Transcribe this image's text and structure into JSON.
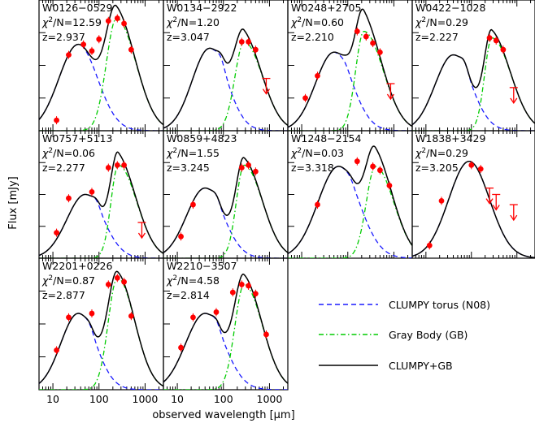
{
  "chart_data": {
    "type": "scatter",
    "xlabel_prefix": "observed wavelength [",
    "xlabel_unit": "μm",
    "xlabel_suffix": "]",
    "ylabel": "Flux [mJy]",
    "x_scale": "log",
    "xlim": [
      5,
      2500
    ],
    "x_tick_labels": [
      "10",
      "100",
      "1000"
    ],
    "legend": [
      {
        "name": "CLUMPY torus (N08)",
        "color": "#1a1aff",
        "style": "dashed"
      },
      {
        "name": "Gray Body (GB)",
        "color": "#00cc00",
        "style": "dashdot"
      },
      {
        "name": "CLUMPY+GB",
        "color": "#000000",
        "style": "solid"
      }
    ],
    "point_color": "#ff0000",
    "panels": [
      {
        "name": "W0126−0529",
        "chi2": "12.59",
        "z": "2.937",
        "points": [
          [
            12,
            0.08
          ],
          [
            22,
            0.58
          ],
          [
            46,
            0.66
          ],
          [
            70,
            0.61
          ],
          [
            100,
            0.7
          ],
          [
            160,
            0.84
          ],
          [
            250,
            0.86
          ],
          [
            350,
            0.82
          ],
          [
            500,
            0.62
          ]
        ],
        "limits": []
      },
      {
        "name": "W0134−2922",
        "chi2": "1.20",
        "z": "3.047",
        "points": [
          [
            250,
            0.68
          ],
          [
            350,
            0.68
          ],
          [
            500,
            0.62
          ]
        ],
        "limits": [
          [
            850,
            0.4
          ]
        ]
      },
      {
        "name": "W0248+2705",
        "chi2": "0.60",
        "z": "2.210",
        "points": [
          [
            12,
            0.25
          ],
          [
            22,
            0.42
          ],
          [
            160,
            0.76
          ],
          [
            250,
            0.72
          ],
          [
            350,
            0.67
          ],
          [
            500,
            0.6
          ]
        ],
        "limits": [
          [
            850,
            0.36
          ]
        ]
      },
      {
        "name": "W0422−1028",
        "chi2": "0.29",
        "z": "2.227",
        "points": [
          [
            250,
            0.71
          ],
          [
            350,
            0.69
          ],
          [
            500,
            0.62
          ]
        ],
        "limits": [
          [
            850,
            0.33
          ]
        ]
      },
      {
        "name": "W0757+5113",
        "chi2": "0.06",
        "z": "2.277",
        "points": [
          [
            12,
            0.2
          ],
          [
            22,
            0.47
          ],
          [
            70,
            0.52
          ],
          [
            160,
            0.71
          ],
          [
            250,
            0.73
          ],
          [
            350,
            0.73
          ]
        ],
        "limits": [
          [
            850,
            0.28
          ]
        ]
      },
      {
        "name": "W0859+4823",
        "chi2": "1.55",
        "z": "3.245",
        "points": [
          [
            12,
            0.17
          ],
          [
            22,
            0.42
          ],
          [
            250,
            0.71
          ],
          [
            350,
            0.73
          ],
          [
            500,
            0.68
          ]
        ],
        "limits": []
      },
      {
        "name": "W1248−2154",
        "chi2": "0.03",
        "z": "3.318",
        "points": [
          [
            22,
            0.42
          ],
          [
            160,
            0.76
          ],
          [
            350,
            0.72
          ],
          [
            500,
            0.69
          ],
          [
            800,
            0.57
          ]
        ],
        "limits": []
      },
      {
        "name": "W1838+3429",
        "chi2": "0.29",
        "z": "3.205",
        "points": [
          [
            12,
            0.1
          ],
          [
            22,
            0.45
          ],
          [
            100,
            0.73
          ],
          [
            160,
            0.7
          ]
        ],
        "limits": [
          [
            250,
            0.55
          ],
          [
            350,
            0.5
          ],
          [
            850,
            0.42
          ]
        ]
      },
      {
        "name": "W2201+0226",
        "chi2": "0.87",
        "z": "2.877",
        "points": [
          [
            12,
            0.3
          ],
          [
            22,
            0.55
          ],
          [
            70,
            0.58
          ],
          [
            160,
            0.8
          ],
          [
            250,
            0.85
          ],
          [
            350,
            0.82
          ],
          [
            500,
            0.56
          ]
        ],
        "limits": []
      },
      {
        "name": "W2210−3507",
        "chi2": "4.58",
        "z": "2.814",
        "points": [
          [
            12,
            0.32
          ],
          [
            22,
            0.55
          ],
          [
            70,
            0.59
          ],
          [
            160,
            0.74
          ],
          [
            250,
            0.8
          ],
          [
            350,
            0.79
          ],
          [
            500,
            0.73
          ],
          [
            850,
            0.42
          ]
        ],
        "limits": []
      }
    ]
  }
}
